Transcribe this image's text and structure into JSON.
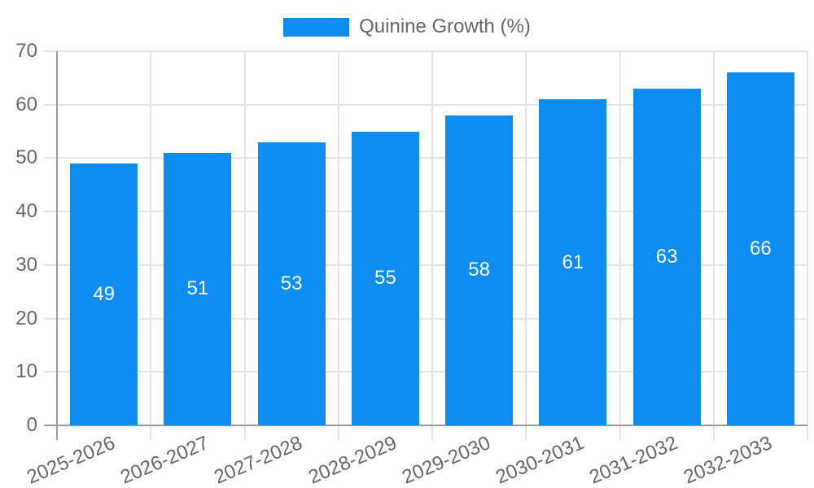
{
  "legend": {
    "label": "Quinine Growth (%)"
  },
  "colors": {
    "bar": "#0d8df2",
    "grid": "#e4e4e4",
    "axis": "#9c9c9c",
    "tick_label": "#666666",
    "legend_label": "#666666",
    "value_label": "#ffffff",
    "background": "#ffffff"
  },
  "chart_data": {
    "type": "bar",
    "title": "",
    "xlabel": "",
    "ylabel": "",
    "categories": [
      "2025-2026",
      "2026-2027",
      "2027-2028",
      "2028-2029",
      "2029-2030",
      "2030-2031",
      "2031-2032",
      "2032-2033"
    ],
    "series": [
      {
        "name": "Quinine Growth (%)",
        "values": [
          49,
          51,
          53,
          55,
          58,
          61,
          63,
          66
        ]
      }
    ],
    "bar_value_labels": [
      "49",
      "51",
      "53",
      "55",
      "58",
      "61",
      "63",
      "66"
    ],
    "ylim": [
      0,
      70
    ],
    "ytick_step": 10,
    "ytick_labels": [
      "0",
      "10",
      "20",
      "30",
      "40",
      "50",
      "60",
      "70"
    ],
    "grid": true,
    "legend_position": "top",
    "x_label_rotation_deg": -23
  }
}
